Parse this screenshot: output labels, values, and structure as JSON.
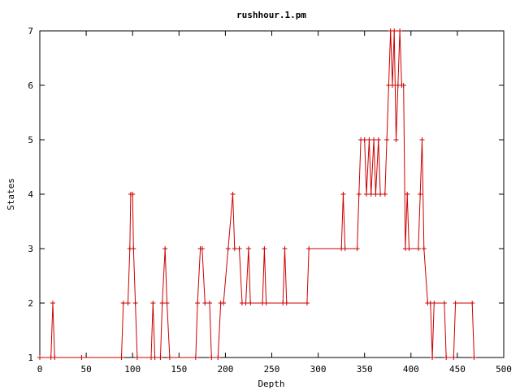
{
  "chart_data": {
    "type": "line",
    "title": "rushhour.1.pm",
    "xlabel": "Depth",
    "ylabel": "States",
    "xlim": [
      0,
      500
    ],
    "ylim": [
      1,
      7
    ],
    "xticks": [
      "0",
      "50",
      "100",
      "150",
      "200",
      "250",
      "300",
      "350",
      "400",
      "450",
      "500"
    ],
    "yticks": [
      "1",
      "2",
      "3",
      "4",
      "5",
      "6",
      "7"
    ],
    "grid": false,
    "legend": "none",
    "series_color": "#cc0000",
    "marker": "plus",
    "series": [
      {
        "points": [
          [
            0,
            1
          ],
          [
            12,
            1
          ],
          [
            14,
            2
          ],
          [
            16,
            1
          ],
          [
            45,
            1
          ],
          [
            88,
            1
          ],
          [
            90,
            2
          ],
          [
            95,
            2
          ],
          [
            97,
            3
          ],
          [
            98,
            4
          ],
          [
            100,
            4
          ],
          [
            101,
            3
          ],
          [
            103,
            2
          ],
          [
            105,
            1
          ],
          [
            120,
            1
          ],
          [
            122,
            2
          ],
          [
            124,
            1
          ],
          [
            130,
            1
          ],
          [
            132,
            2
          ],
          [
            135,
            3
          ],
          [
            137,
            2
          ],
          [
            140,
            1
          ],
          [
            168,
            1
          ],
          [
            170,
            2
          ],
          [
            173,
            3
          ],
          [
            175,
            3
          ],
          [
            178,
            2
          ],
          [
            183,
            2
          ],
          [
            185,
            1
          ],
          [
            192,
            1
          ],
          [
            195,
            2
          ],
          [
            198,
            2
          ],
          [
            203,
            3
          ],
          [
            208,
            4
          ],
          [
            210,
            3
          ],
          [
            215,
            3
          ],
          [
            218,
            2
          ],
          [
            222,
            2
          ],
          [
            225,
            3
          ],
          [
            227,
            2
          ],
          [
            240,
            2
          ],
          [
            242,
            3
          ],
          [
            244,
            2
          ],
          [
            262,
            2
          ],
          [
            264,
            3
          ],
          [
            266,
            2
          ],
          [
            288,
            2
          ],
          [
            290,
            3
          ],
          [
            325,
            3
          ],
          [
            327,
            4
          ],
          [
            329,
            3
          ],
          [
            342,
            3
          ],
          [
            344,
            4
          ],
          [
            346,
            5
          ],
          [
            350,
            5
          ],
          [
            352,
            4
          ],
          [
            355,
            5
          ],
          [
            357,
            4
          ],
          [
            360,
            5
          ],
          [
            362,
            4
          ],
          [
            365,
            5
          ],
          [
            367,
            4
          ],
          [
            372,
            4
          ],
          [
            374,
            5
          ],
          [
            376,
            6
          ],
          [
            378,
            7
          ],
          [
            380,
            6
          ],
          [
            382,
            7
          ],
          [
            384,
            5
          ],
          [
            386,
            6
          ],
          [
            388,
            7
          ],
          [
            390,
            6
          ],
          [
            392,
            6
          ],
          [
            394,
            3
          ],
          [
            396,
            4
          ],
          [
            398,
            3
          ],
          [
            408,
            3
          ],
          [
            410,
            4
          ],
          [
            412,
            5
          ],
          [
            414,
            3
          ],
          [
            418,
            2
          ],
          [
            421,
            2
          ],
          [
            423,
            1
          ],
          [
            425,
            2
          ],
          [
            436,
            2
          ],
          [
            438,
            1
          ],
          [
            446,
            1
          ],
          [
            448,
            2
          ],
          [
            466,
            2
          ],
          [
            468,
            1
          ]
        ]
      }
    ]
  }
}
